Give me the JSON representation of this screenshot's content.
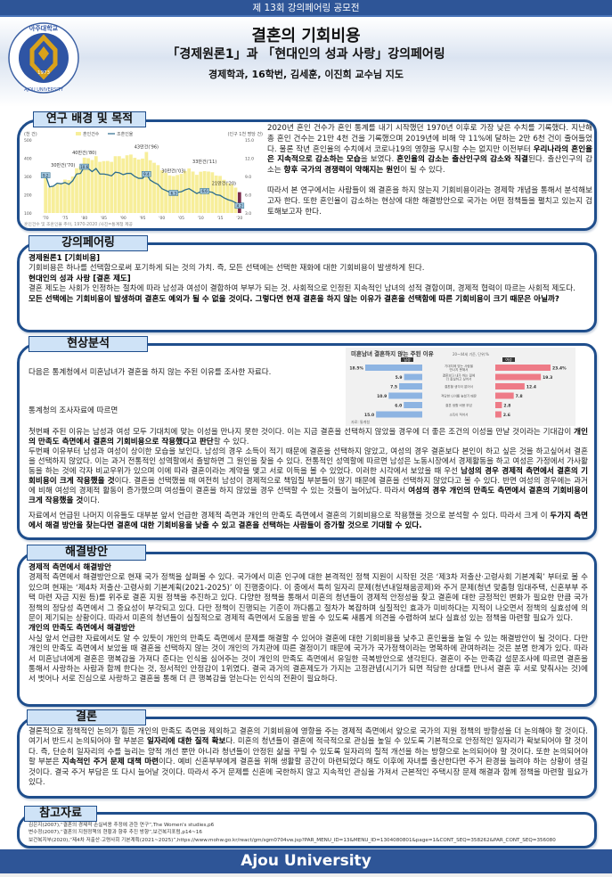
{
  "topbar": {
    "label": "제 13회 강의페어링 공모전"
  },
  "header": {
    "title": "결혼의 기회비용",
    "subtitle": "「경제원론1」과 「현대인의 성과 사랑」강의페어링",
    "authors": "경제학과, 16학번, 김세훈, 이진희 교수님 지도",
    "logo_text": [
      "아주대학교",
      "AJOU UNIVERSITY",
      "1973"
    ]
  },
  "colors": {
    "brand": "#2e5597",
    "border": "#1f4e8c",
    "tab_fill": "#cfe3f7",
    "bar": "#f7ee9a",
    "line": "#2b6c8e",
    "male": "#8db4e2",
    "female": "#ee7b87"
  },
  "sections": {
    "background": {
      "title": "연구 배경 및 목적",
      "paragraphs": [
        [
          {
            "t": "2020년 혼인 건수가 혼인 통계를 내기 시작했던 1970년 이후로 가장 낮은 수치를 기록했다. 지난해 총 혼인 건수는 21만 4천 건을 기록했으며 2019년에 비해 약 11%에 달하는 2만 6천 건이 줄어들었다. 물론 작년 혼인율의 수치에서 코로나19의 영향을 무시할 수는 없지만 이전부터 "
          },
          {
            "t": "우리나라의 혼인율은 지속적으로 감소하는 모습",
            "b": true
          },
          {
            "t": "을 보였다. "
          },
          {
            "t": "혼인율의 감소는 출산인구의 감소와 직결",
            "b": true
          },
          {
            "t": "된다. 출산인구의 감소는 "
          },
          {
            "t": "향후 국가의 경쟁력이 약해지는 원인",
            "b": true
          },
          {
            "t": "이 될 수 있다."
          }
        ],
        [
          {
            "t": "따라서 본 연구에서는 사람들이 왜 결혼을 하지 않는지 기회비용이라는 경제학 개념을 통해서 분석해보고자 한다. 또한 혼인율이 감소하는 현상에 대한 해결방안으로 국가는 어떤 정책들을 펼치고 있는지 검토해보고자 한다."
          }
        ]
      ]
    },
    "pairing": {
      "title": "강의페어링",
      "paragraphs": [
        [
          {
            "t": "경제원론1 [기회비용]",
            "b": true
          }
        ],
        [
          {
            "t": "기회비용은 하나를 선택함으로써 포기하게 되는 것의 가치. 즉, 모든 선택에는 선택한 재화에 대한 기회비용이 발생하게 된다."
          }
        ],
        [
          {
            "t": "현대인의 성과 사랑 [결혼 제도]",
            "b": true
          }
        ],
        [
          {
            "t": "결혼 제도는 사회가 인정하는 절차에 따라 남성과 여성이 결합하여 부부가 되는 것. 사회적으로 인정된 지속적인 남녀의 성적 결합이며, 경제적 협력이 따르는 사회적 제도다."
          }
        ],
        [
          {
            "t": "모든 선택에는 기회비용이 발생하며 결혼도 예외가 될 수 없을 것이다. 그렇다면 현재 결혼을 하지 않는 이유가 결혼을 선택함에 따른 기회비용이 크기 때문은 아닐까?",
            "b": true
          }
        ]
      ]
    },
    "analysis": {
      "title": "현상분석",
      "intro": "다음은 통계청에서 미혼남녀가 결혼을 하지 않는 주된 이유를 조사한 자료다.",
      "lead": "통계청의 조사자료에 따르면",
      "paragraphs": [
        [
          {
            "t": "첫번째 주된 이유는 남성과 여성 모두 기대치에 맞는 이성을 만나지 못한 것이다. 이는 지금 결혼을 선택하지 않았을 경우에 더 좋은 조건의 이성을 만날 것이라는 기대감이 "
          },
          {
            "t": "개인의 만족도 측면에서 결혼의 기회비용으로 작용했다고 판단",
            "b": true
          },
          {
            "t": "할 수 있다."
          }
        ],
        [
          {
            "t": "두번째 이유부터 남성과 여성이 상이한 모습을 보인다. 남성의 경우 소득이 적기 때문에 결혼을 선택하지 않았고, 여성의 경우 결혼보다 본인이 하고 싶은 것을 하고싶어서 결혼을 선택하지 않았다. 이는 과거 전통적인 성역할에서 출발하면 그 원인을 찾을 수 있다. 전통적인 성역할에 따르면 남성은 노동시장에서 경제활동을 하고 여성은 가정에서 가사활동을 하는 것에 각자 비교우위가 있으며 이에 따라 결혼이라는 계약을 맺고 서로 이득을 볼 수 있었다. 이러한 시각에서 보았을 때 우선 "
          },
          {
            "t": "남성의 경우 경제적 측면에서 결혼의 기회비용이 크게 작용했을 것",
            "b": true
          },
          {
            "t": "이다. 결혼을 선택했을 때 여전히 남성이 경제적으로 책임질 부분들이 많기 때문에 결혼을 선택하지 않았다고 볼 수 있다. 반면 여성의 경우에는 과거에 비해 여성의 경제적 활동이 증가했으며 여성들이 결혼을 하지 않았을 경우 선택할 수 있는 것들이 늘어났다. 따라서 "
          },
          {
            "t": "여성의 경우 개인의 만족도 측면에서 결혼의 기회비용이 크게 작용했을 것",
            "b": true
          },
          {
            "t": "이다."
          }
        ]
      ],
      "closing": [
        [
          {
            "t": "자료에서 언급된 나머지 이유들도 대부분 앞서 언급한 경제적 측면과 개인의 만족도 측면에서 결혼의 기회비용으로 작용했을 것으로 분석할 수 있다. 따라서 크게 이 "
          },
          {
            "t": "두가지 측면에서 해결 방안을 찾는다면 결혼에 대한 기회비용을 낮출 수 있고 결혼을 선택하는 사람들이 증가할 것으로 기대할 수 있다.",
            "b": true
          }
        ]
      ]
    },
    "solution": {
      "title": "해결방안",
      "paragraphs": [
        [
          {
            "t": "경제적 측면에서 해결방안",
            "b": true
          }
        ],
        [
          {
            "t": "경제적 측면에서 해결방안으로 현재 국가 정책을 살펴볼 수 있다. 국가에서 미혼 인구에 대한 본격적인 정책 지원이 시작된 것은 ‘제3차 저출산·고령사회 기본계획’ 부터로 볼 수 있으며 현재는 ‘제4차 저출산·고령사회 기본계획(2021-2025)’ 이 진행중이다. 이 중에서 특히 일자리 문제(청년내일채움공제)와 주거 문제(청년 맞춤형 임대주택, 신혼부부 주택 마련 자금 지원 등)를 위주로 결혼 지원 정책을 추진하고 있다. 다양한 정책을 통해서 미혼의 청년들이 경제적 안정성을 찾고 결혼에 대한 긍정적인 변화가 필요한 만큼 국가 정책의 정당성 측면에서 그 중요성이 부각되고 있다. 다만 정책이 진행되는 기준이 까다롭고 절차가 복잡하며 실질적인 효과가 미비하다는 지적이 나오면서 정책의 실효성에 의문이 제기되는 상황이다. 따라서 미혼의 청년들이 실질적으로 경제적 측면에서 도움을 받을 수 있도록 새롭게 의견을 수렴하여 보다 실효성 있는 정책을 마련할 필요가 있다."
          }
        ],
        [
          {
            "t": "개인의 만족도 측면에서 해결방안",
            "b": true
          }
        ],
        [
          {
            "t": "사실 앞서 언급한 자료에서도 알 수 있듯이 개인의 만족도 측면에서 문제를 해결할 수 있어야 결혼에 대한 기회비용을 낮추고 혼인율을 높일 수 있는 해결방안이 될 것이다. 다만 개인의 만족도 측면에서 보았을 때 결혼을 선택하지 않는 것이 개인의 가치관에 따른 결정이기 때문에 국가가 국가정책이라는 명목하에 관여하려는 것은 분명 한계가 있다. 따라서 미혼남녀에게 결혼은 행복감을 가져다 준다는 인식을 심어주는 것이 개인의 만족도 측면에서 유일한 극복방안으로 생각된다. 결혼이 주는 만족감 설문조사에 따르면 결혼을 통해서 사랑하는 사람과 함께 한다는 것, 정서적인 안정감이 1위였다. 결국 과거의 결혼제도가 가지는 고정관념(시기가 되면 적당한 상대를 만나서 결혼 후 서로 맞춰사는 것)에서 벗어나 서로 진심으로 사랑하고 결혼을 통해 더 큰 행복감을 얻는다는 인식의 전환이 필요하다."
          }
        ]
      ]
    },
    "conclusion": {
      "title": "결론",
      "paragraphs": [
        [
          {
            "t": "결론적으로 정책적인 논의가 힘든 개인의 만족도 측면을 제외하고 결혼의 기회비용에 영향을 주는 경제적 측면에서 앞으로 국가의 지원 정책의 방향성을 더 논의해야 할 것이다. 여기서 반드시 논의되어야 할 부분은 "
          },
          {
            "t": "일자리에 대한 질적 확보",
            "b": true
          },
          {
            "t": "다. 미혼의 청년들이 결혼에 적극적으로 관심을 높일 수 있도록 기본적으로 안정적인 일자리가 확보되어야 할 것이다. 즉, 단순히 일자리의 수를 늘리는 양적 개선 뿐만 아니라 청년들이 안정된 삶을 꾸릴 수 있도록 일자리의 질적 개선을 하는 방향으로 논의되어야 할 것이다. 또한 논의되어야 할 부분은 "
          },
          {
            "t": "지속적인 주거 문제 대책 마련",
            "b": true
          },
          {
            "t": "이다. 예비 신혼부부에게 결혼을 위해 생활할 공간이 마련되었다 해도 이후에 자녀를 출산한다면 주거 환경을 늘려야 하는 상황이 생길 것이다. 결국 주거 부담은 또 다시 늘어날 것이다. 따라서 주거 문제를 신혼에 국한하지 않고 지속적인 관심을 가져서 근본적인 주택시장 문제 해결과 함께 정책을 마련할 필요가 있다."
          }
        ]
      ]
    },
    "references": {
      "title": "참고자료",
      "items": [
        "김은지(2007),“결혼의 경제적 손실비용 추정에 관한 연구”,The Women's studies,p6",
        "변수정(2007),“결혼의 지원정책의 현황과 향후 추진 방향”,보건복지포럼,p14~16",
        "보건복지부(2020),“제4차 저출산·고령사회 기본계획(2021~2025)”,https://www.mohw.go.kr/react/gm/sgm0704vw.jsp?PAR_MENU_ID=13&MENU_ID=1304080801&page=1&CONT_SEQ=358262&PAR_CONT_SEQ=356080"
      ]
    }
  },
  "footer": {
    "label": "Ajou University"
  },
  "chart_data": [
    {
      "type": "bar+line",
      "legend": [
        "혼인건수",
        "조혼인율"
      ],
      "legend_placement": "top",
      "ylabel_left": "(천 건)",
      "ylabel_right": "(인구 1천 명당 건)",
      "ylim_left": [
        100,
        500
      ],
      "ylim_right": [
        3.0,
        15.0
      ],
      "yticks_left": [
        "500",
        "400",
        "300",
        "200",
        "100"
      ],
      "yticks_right": [
        "15.0",
        "12.0",
        "9.0",
        "6.0",
        "3.0"
      ],
      "xticks": [
        "'70",
        "'75",
        "'80",
        "'85",
        "'90",
        "'95",
        "'00",
        "'05",
        "'10",
        "'15",
        "'20"
      ],
      "x": [
        1970,
        1971,
        1972,
        1973,
        1974,
        1975,
        1976,
        1977,
        1978,
        1979,
        1980,
        1981,
        1982,
        1983,
        1984,
        1985,
        1986,
        1987,
        1988,
        1989,
        1990,
        1991,
        1992,
        1993,
        1994,
        1995,
        1996,
        1997,
        1998,
        1999,
        2000,
        2001,
        2002,
        2003,
        2004,
        2005,
        2006,
        2007,
        2008,
        2009,
        2010,
        2011,
        2012,
        2013,
        2014,
        2015,
        2016,
        2017,
        2018,
        2019,
        2020
      ],
      "series": [
        {
          "name": "혼인건수",
          "values": [
            295,
            240,
            245,
            260,
            260,
            283,
            280,
            300,
            345,
            355,
            403,
            400,
            390,
            411,
            380,
            384,
            385,
            380,
            411,
            411,
            399,
            416,
            420,
            402,
            393,
            398,
            434,
            389,
            375,
            362,
            334,
            320,
            306,
            302,
            308,
            314,
            330,
            344,
            327,
            309,
            326,
            329,
            327,
            323,
            305,
            303,
            282,
            264,
            258,
            239,
            214
          ]
        },
        {
          "name": "조혼인율",
          "values": [
            9.2,
            7.3,
            7.4,
            7.9,
            7.8,
            8.0,
            7.7,
            8.3,
            9.4,
            9.5,
            10.6,
            10.3,
            9.8,
            10.3,
            9.4,
            9.4,
            9.3,
            9.1,
            9.7,
            9.6,
            9.3,
            9.5,
            9.5,
            9.0,
            8.7,
            8.7,
            9.4,
            8.4,
            8.0,
            7.7,
            7.0,
            6.7,
            6.4,
            6.3,
            6.4,
            6.5,
            6.8,
            7.0,
            6.6,
            6.2,
            6.5,
            6.6,
            6.5,
            6.4,
            6.0,
            5.9,
            5.5,
            5.2,
            5.0,
            4.7,
            4.2
          ]
        }
      ],
      "annotations": [
        {
          "year": 1970,
          "text": "30만건('70)",
          "rate": "9.2"
        },
        {
          "year": 1980,
          "text": "40만건('80)",
          "rate": "10.6"
        },
        {
          "year": 1996,
          "text": "43만건('96)",
          "rate": "9.4"
        },
        {
          "year": 2003,
          "text": "30만건('03)",
          "rate": "6.3"
        },
        {
          "year": 2011,
          "text": "33만건('11)",
          "rate": "6.6"
        },
        {
          "year": 2020,
          "text": "21만건('20)",
          "rate": "4.2"
        }
      ],
      "caption": "혼인건수 및 조혼인율 추이, 1970-2020 /사진=통계청 제공"
    },
    {
      "type": "bar",
      "orientation": "horizontal-butterfly",
      "title": "미혼남녀 결혼하지 않는 주된 이유",
      "subtitle": "20~44세 기준, 단위:%",
      "categories": [
        "기대치에 맞는 사람을 만나지 못해서",
        "결혼보다 내가 하는 일에 더 충실하고 싶어서",
        "결혼할 생각이 없어서",
        "적당한 나이를 놓쳤기 때문",
        "결혼 생활 비용 부담",
        "소득이 적어서"
      ],
      "series": [
        {
          "name": "남성",
          "values": [
            18.5,
            5.9,
            7.5,
            10.9,
            6.0,
            15.0
          ],
          "labels": [
            "18.5%",
            "5.9",
            "7.5",
            "10.9",
            "6.0",
            "15.0"
          ]
        },
        {
          "name": "여성",
          "values": [
            23.4,
            19.3,
            12.4,
            7.8,
            2.8,
            2.6
          ],
          "labels": [
            "23.4%",
            "19.3",
            "12.4",
            "7.8",
            "2.8",
            "2.6"
          ]
        }
      ],
      "source": "자료: 통계청"
    }
  ]
}
